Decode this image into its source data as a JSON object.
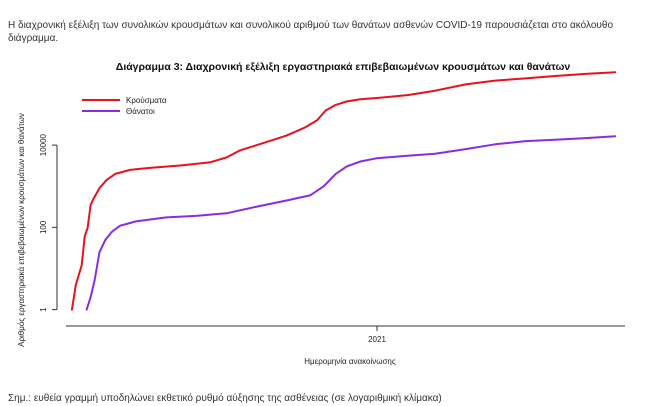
{
  "document": {
    "intro_text": "Η διαχρονική εξέλιξη των συνολικών κρουσμάτων και συνολικού αριθμού των θανάτων ασθενών COVID-19 παρουσιάζεται στο ακόλουθο διάγραμμα.",
    "footnote": "Σημ.: ευθεία γραμμή υποδηλώνει εκθετικό ρυθμό αύξησης της ασθένειας (σε λογαριθμική κλίμακα)"
  },
  "chart_data": {
    "type": "line",
    "title": "Διάγραμμα 3: Διαχρονική εξέλιξη εργαστηριακά επιβεβαιωμένων κρουσμάτων και θανάτων",
    "xlabel": "Ημερομηνία ανακοίνωσης",
    "ylabel": "Αριθμός εργαστηριακά επιβεβαιωμένων κρουσμάτων και θανάτων",
    "y_scale": "log",
    "ylim": [
      0.5,
      600000
    ],
    "yticks": [
      {
        "value": 1,
        "label": "1"
      },
      {
        "value": 100,
        "label": "100"
      },
      {
        "value": 10000,
        "label": "10000"
      }
    ],
    "xlim": [
      "2020-02-20",
      "2021-09-10"
    ],
    "xticks": [
      {
        "value": "2021-01-01",
        "label": "2021"
      }
    ],
    "grid": false,
    "legend_position": "top-left",
    "series": [
      {
        "name": "Κρούσματα",
        "color": "#e8121c",
        "points": [
          [
            "2020-02-26",
            1
          ],
          [
            "2020-02-28",
            2
          ],
          [
            "2020-03-01",
            4
          ],
          [
            "2020-03-04",
            7
          ],
          [
            "2020-03-07",
            12
          ],
          [
            "2020-03-10",
            60
          ],
          [
            "2020-03-13",
            100
          ],
          [
            "2020-03-16",
            350
          ],
          [
            "2020-03-19",
            500
          ],
          [
            "2020-03-25",
            900
          ],
          [
            "2020-04-01",
            1400
          ],
          [
            "2020-04-10",
            2000
          ],
          [
            "2020-04-25",
            2500
          ],
          [
            "2020-05-15",
            2800
          ],
          [
            "2020-06-15",
            3200
          ],
          [
            "2020-07-15",
            3800
          ],
          [
            "2020-08-01",
            5000
          ],
          [
            "2020-08-15",
            7500
          ],
          [
            "2020-09-01",
            10000
          ],
          [
            "2020-10-01",
            17000
          ],
          [
            "2020-10-20",
            27000
          ],
          [
            "2020-11-01",
            40000
          ],
          [
            "2020-11-10",
            70000
          ],
          [
            "2020-11-20",
            95000
          ],
          [
            "2020-12-01",
            115000
          ],
          [
            "2020-12-15",
            130000
          ],
          [
            "2021-01-01",
            140000
          ],
          [
            "2021-02-01",
            165000
          ],
          [
            "2021-03-01",
            210000
          ],
          [
            "2021-04-01",
            300000
          ],
          [
            "2021-05-01",
            370000
          ],
          [
            "2021-06-01",
            420000
          ],
          [
            "2021-07-01",
            480000
          ],
          [
            "2021-08-01",
            540000
          ],
          [
            "2021-08-31",
            590000
          ]
        ]
      },
      {
        "name": "Θάνατοι",
        "color": "#8a2be2",
        "points": [
          [
            "2020-03-12",
            1
          ],
          [
            "2020-03-16",
            2
          ],
          [
            "2020-03-20",
            5
          ],
          [
            "2020-03-25",
            25
          ],
          [
            "2020-03-31",
            50
          ],
          [
            "2020-04-07",
            80
          ],
          [
            "2020-04-15",
            110
          ],
          [
            "2020-05-01",
            140
          ],
          [
            "2020-06-01",
            175
          ],
          [
            "2020-07-01",
            190
          ],
          [
            "2020-08-01",
            220
          ],
          [
            "2020-09-01",
            320
          ],
          [
            "2020-10-01",
            450
          ],
          [
            "2020-10-25",
            600
          ],
          [
            "2020-11-08",
            1000
          ],
          [
            "2020-11-20",
            2000
          ],
          [
            "2020-12-01",
            3000
          ],
          [
            "2020-12-15",
            4000
          ],
          [
            "2021-01-01",
            4800
          ],
          [
            "2021-02-01",
            5500
          ],
          [
            "2021-03-01",
            6200
          ],
          [
            "2021-04-01",
            8000
          ],
          [
            "2021-05-01",
            10500
          ],
          [
            "2021-06-01",
            12500
          ],
          [
            "2021-07-01",
            13500
          ],
          [
            "2021-08-01",
            14800
          ],
          [
            "2021-08-31",
            16500
          ]
        ]
      }
    ]
  }
}
